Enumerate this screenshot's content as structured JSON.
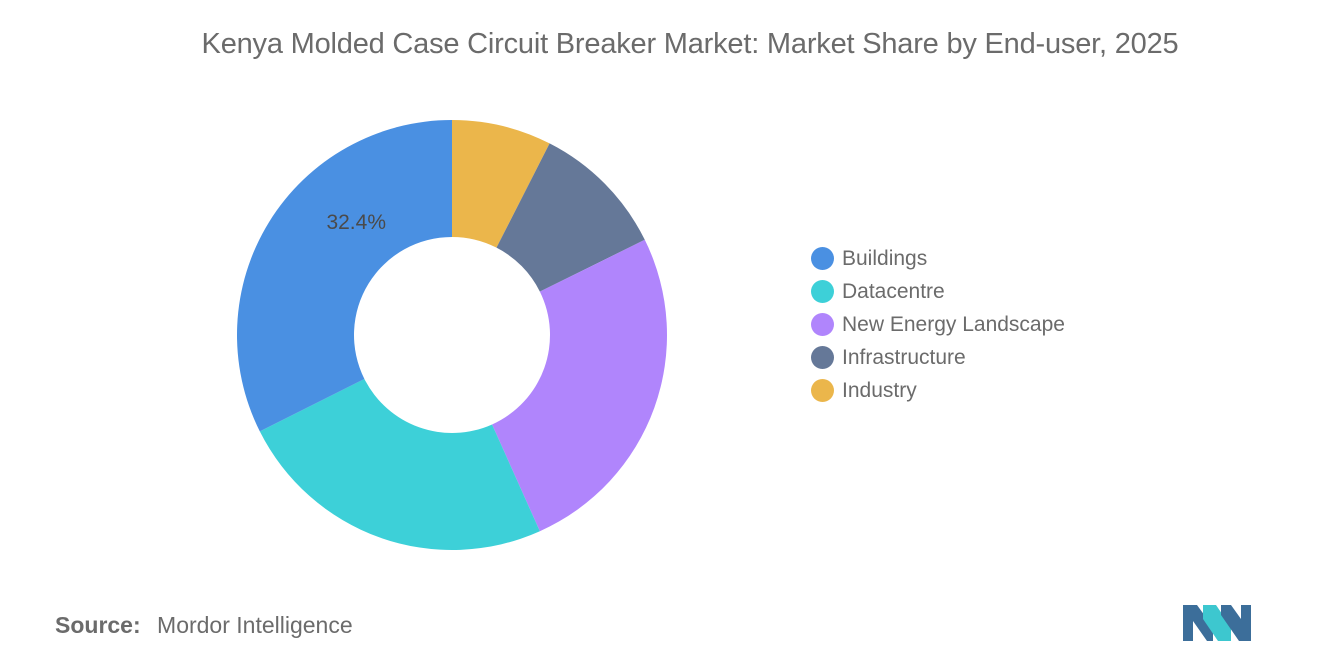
{
  "chart_data": {
    "type": "pie",
    "variant": "donut",
    "title": "Kenya Molded Case Circuit Breaker Market: Market Share by End-user, 2025",
    "categories": [
      "Industry",
      "Infrastructure",
      "New Energy Landscape",
      "Datacentre",
      "Buildings"
    ],
    "values": [
      7.5,
      10.2,
      25.6,
      24.3,
      32.4
    ],
    "colors": [
      "#ebb64b",
      "#657898",
      "#b085fc",
      "#3dd0d8",
      "#4a90e2"
    ],
    "data_labels": [
      {
        "category": "Buildings",
        "text": "32.4%"
      }
    ],
    "legend": {
      "placement": "right",
      "items": [
        {
          "label": "Buildings",
          "color": "#4a90e2"
        },
        {
          "label": "Datacentre",
          "color": "#3dd0d8"
        },
        {
          "label": "New Energy Landscape",
          "color": "#b085fc"
        },
        {
          "label": "Infrastructure",
          "color": "#657898"
        },
        {
          "label": "Industry",
          "color": "#ebb64b"
        }
      ]
    }
  },
  "source": {
    "key": "Source:",
    "value": "Mordor Intelligence"
  },
  "logo": {
    "icon": "mordor-intelligence-logo-icon",
    "colors": [
      "#3c6e9a",
      "#3dc7cf"
    ]
  }
}
